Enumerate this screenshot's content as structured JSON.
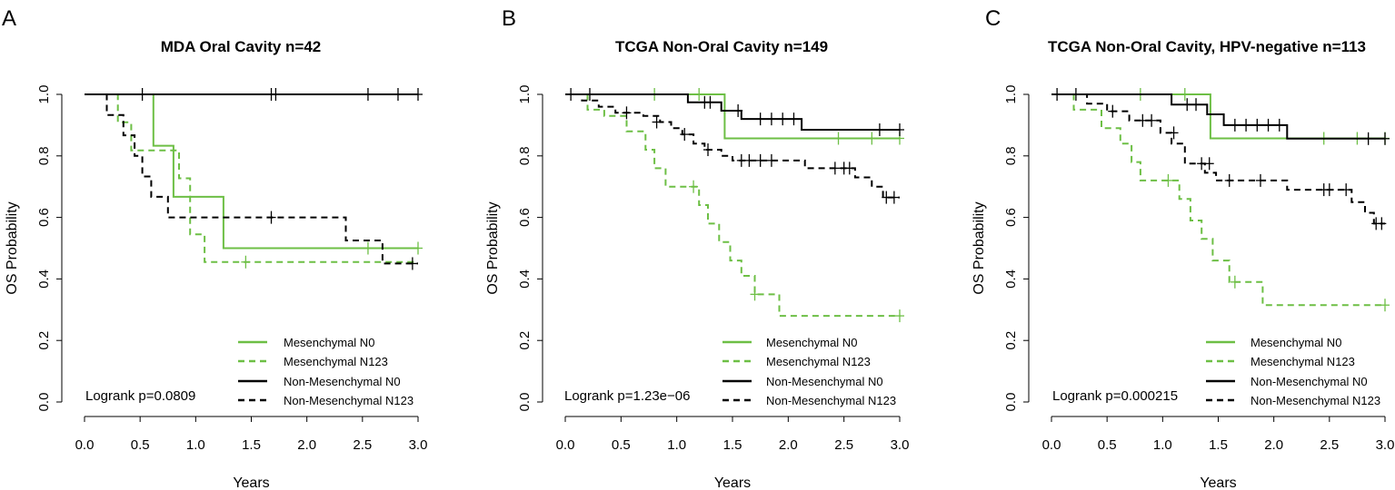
{
  "colors": {
    "green": "#6dbf45",
    "black": "#000000"
  },
  "chart_data": [
    {
      "type": "line",
      "subtype": "kaplan-meier",
      "panel": "A",
      "title": "MDA Oral Cavity n=42",
      "xlabel": "Years",
      "ylabel": "OS Probability",
      "xlim": [
        0,
        3
      ],
      "ylim": [
        0,
        1
      ],
      "xticks": [
        "0.0",
        "0.5",
        "1.0",
        "1.5",
        "2.0",
        "2.5",
        "3.0"
      ],
      "yticks": [
        "0.0",
        "0.2",
        "0.4",
        "0.6",
        "0.8",
        "1.0"
      ],
      "pvalue": "Logrank p=0.0809",
      "legend": [
        "Mesenchymal N0",
        "Mesenchymal N123",
        "Non-Mesenchymal N0",
        "Non-Mesenchymal N123"
      ],
      "series": [
        {
          "name": "Mesenchymal N0",
          "color": "#6dbf45",
          "dashed": false,
          "x": [
            0,
            0.62,
            0.62,
            0.8,
            0.8,
            1.25,
            1.25,
            3.0
          ],
          "y": [
            1,
            1,
            0.833,
            0.833,
            0.667,
            0.667,
            0.5,
            0.5
          ],
          "censor_x": [
            2.55,
            3.0
          ],
          "censor_y": [
            0.5,
            0.5
          ]
        },
        {
          "name": "Mesenchymal N123",
          "color": "#6dbf45",
          "dashed": true,
          "x": [
            0,
            0.3,
            0.3,
            0.42,
            0.42,
            0.85,
            0.85,
            0.95,
            0.95,
            1.08,
            1.08,
            3.0
          ],
          "y": [
            1,
            1,
            0.909,
            0.909,
            0.818,
            0.818,
            0.727,
            0.727,
            0.545,
            0.545,
            0.455,
            0.455
          ],
          "censor_x": [
            1.45
          ],
          "censor_y": [
            0.455
          ]
        },
        {
          "name": "Non-Mesenchymal N0",
          "color": "#000000",
          "dashed": false,
          "x": [
            0,
            3.0
          ],
          "y": [
            1,
            1
          ],
          "censor_x": [
            0.52,
            1.68,
            1.72,
            2.55,
            2.82,
            3.0
          ],
          "censor_y": [
            1,
            1,
            1,
            1,
            1,
            1
          ]
        },
        {
          "name": "Non-Mesenchymal N123",
          "color": "#000000",
          "dashed": true,
          "x": [
            0,
            0.2,
            0.2,
            0.35,
            0.35,
            0.45,
            0.45,
            0.52,
            0.52,
            0.6,
            0.6,
            0.75,
            0.75,
            2.35,
            2.35,
            2.68,
            2.68,
            3.0
          ],
          "y": [
            1,
            1,
            0.933,
            0.933,
            0.867,
            0.867,
            0.8,
            0.8,
            0.733,
            0.733,
            0.667,
            0.667,
            0.6,
            0.6,
            0.525,
            0.525,
            0.45,
            0.45
          ],
          "censor_x": [
            1.68,
            2.95
          ],
          "censor_y": [
            0.6,
            0.45
          ]
        }
      ]
    },
    {
      "type": "line",
      "subtype": "kaplan-meier",
      "panel": "B",
      "title": "TCGA Non-Oral Cavity n=149",
      "xlabel": "Years",
      "ylabel": "OS Probability",
      "xlim": [
        0,
        3
      ],
      "ylim": [
        0,
        1
      ],
      "xticks": [
        "0.0",
        "0.5",
        "1.0",
        "1.5",
        "2.0",
        "2.5",
        "3.0"
      ],
      "yticks": [
        "0.0",
        "0.2",
        "0.4",
        "0.6",
        "0.8",
        "1.0"
      ],
      "pvalue": "Logrank p=1.23e−06",
      "legend": [
        "Mesenchymal N0",
        "Mesenchymal N123",
        "Non-Mesenchymal N0",
        "Non-Mesenchymal N123"
      ],
      "series": [
        {
          "name": "Mesenchymal N0",
          "color": "#6dbf45",
          "dashed": false,
          "x": [
            0,
            1.43,
            1.43,
            3.0
          ],
          "y": [
            1,
            1,
            0.857,
            0.857
          ],
          "censor_x": [
            0.8,
            1.2,
            2.45,
            2.75,
            3.0
          ],
          "censor_y": [
            1,
            1,
            0.857,
            0.857,
            0.857
          ]
        },
        {
          "name": "Mesenchymal N123",
          "color": "#6dbf45",
          "dashed": true,
          "x": [
            0,
            0.2,
            0.2,
            0.35,
            0.35,
            0.55,
            0.55,
            0.72,
            0.72,
            0.8,
            0.8,
            0.9,
            0.9,
            0.98,
            0.98,
            1.2,
            1.2,
            1.28,
            1.28,
            1.38,
            1.38,
            1.48,
            1.48,
            1.58,
            1.58,
            1.7,
            1.7,
            1.92,
            1.92,
            3.0
          ],
          "y": [
            1,
            1,
            0.95,
            0.95,
            0.93,
            0.93,
            0.88,
            0.88,
            0.82,
            0.82,
            0.76,
            0.76,
            0.7,
            0.7,
            0.7,
            0.7,
            0.64,
            0.64,
            0.58,
            0.58,
            0.52,
            0.52,
            0.46,
            0.46,
            0.41,
            0.41,
            0.35,
            0.35,
            0.28,
            0.28
          ],
          "censor_x": [
            1.15,
            1.7,
            3.0
          ],
          "censor_y": [
            0.7,
            0.35,
            0.28
          ]
        },
        {
          "name": "Non-Mesenchymal N0",
          "color": "#000000",
          "dashed": false,
          "x": [
            0,
            1.1,
            1.1,
            1.4,
            1.4,
            1.58,
            1.58,
            2.12,
            2.12,
            3.0
          ],
          "y": [
            1,
            1,
            0.974,
            0.974,
            0.947,
            0.947,
            0.92,
            0.92,
            0.885,
            0.885
          ],
          "censor_x": [
            0.22,
            1.25,
            1.3,
            1.55,
            1.75,
            1.85,
            1.95,
            2.05,
            2.82,
            3.0
          ],
          "censor_y": [
            1,
            0.974,
            0.974,
            0.947,
            0.92,
            0.92,
            0.92,
            0.92,
            0.885,
            0.885
          ]
        },
        {
          "name": "Non-Mesenchymal N123",
          "color": "#000000",
          "dashed": true,
          "x": [
            0,
            0.15,
            0.15,
            0.3,
            0.3,
            0.45,
            0.45,
            0.7,
            0.7,
            0.85,
            0.85,
            0.95,
            0.95,
            1.05,
            1.05,
            1.15,
            1.15,
            1.25,
            1.25,
            1.4,
            1.4,
            1.5,
            1.5,
            2.15,
            2.15,
            2.6,
            2.6,
            2.75,
            2.75,
            2.85,
            2.85,
            3.0
          ],
          "y": [
            1,
            1,
            0.98,
            0.98,
            0.96,
            0.96,
            0.94,
            0.94,
            0.93,
            0.93,
            0.91,
            0.91,
            0.89,
            0.89,
            0.87,
            0.87,
            0.84,
            0.84,
            0.82,
            0.82,
            0.8,
            0.8,
            0.785,
            0.785,
            0.76,
            0.76,
            0.73,
            0.73,
            0.7,
            0.7,
            0.665,
            0.665
          ],
          "censor_x": [
            0.05,
            0.55,
            0.82,
            1.07,
            1.28,
            1.58,
            1.65,
            1.75,
            1.85,
            2.42,
            2.5,
            2.55,
            2.88,
            2.95
          ],
          "censor_y": [
            1,
            0.94,
            0.91,
            0.87,
            0.82,
            0.785,
            0.785,
            0.785,
            0.785,
            0.76,
            0.76,
            0.76,
            0.665,
            0.665
          ]
        }
      ]
    },
    {
      "type": "line",
      "subtype": "kaplan-meier",
      "panel": "C",
      "title": "TCGA Non-Oral Cavity, HPV-negative n=113",
      "xlabel": "Years",
      "ylabel": "OS Probability",
      "xlim": [
        0,
        3
      ],
      "ylim": [
        0,
        1
      ],
      "xticks": [
        "0.0",
        "0.5",
        "1.0",
        "1.5",
        "2.0",
        "2.5",
        "3.0"
      ],
      "yticks": [
        "0.0",
        "0.2",
        "0.4",
        "0.6",
        "0.8",
        "1.0"
      ],
      "pvalue": "Logrank p=0.000215",
      "legend": [
        "Mesenchymal N0",
        "Mesenchymal N123",
        "Non-Mesenchymal N0",
        "Non-Mesenchymal N123"
      ],
      "series": [
        {
          "name": "Mesenchymal N0",
          "color": "#6dbf45",
          "dashed": false,
          "x": [
            0,
            1.43,
            1.43,
            3.0
          ],
          "y": [
            1,
            1,
            0.857,
            0.857
          ],
          "censor_x": [
            0.8,
            1.2,
            2.45,
            2.75,
            3.0
          ],
          "censor_y": [
            1,
            1,
            0.857,
            0.857,
            0.857
          ]
        },
        {
          "name": "Mesenchymal N123",
          "color": "#6dbf45",
          "dashed": true,
          "x": [
            0,
            0.2,
            0.2,
            0.45,
            0.45,
            0.62,
            0.62,
            0.72,
            0.72,
            0.8,
            0.8,
            0.88,
            0.88,
            1.15,
            1.15,
            1.25,
            1.25,
            1.35,
            1.35,
            1.45,
            1.45,
            1.6,
            1.6,
            1.9,
            1.9,
            3.0
          ],
          "y": [
            1,
            1,
            0.95,
            0.95,
            0.89,
            0.89,
            0.84,
            0.84,
            0.78,
            0.78,
            0.72,
            0.72,
            0.72,
            0.72,
            0.66,
            0.66,
            0.59,
            0.59,
            0.53,
            0.53,
            0.46,
            0.46,
            0.39,
            0.39,
            0.315,
            0.315
          ],
          "censor_x": [
            1.05,
            1.65,
            3.0
          ],
          "censor_y": [
            0.72,
            0.39,
            0.315
          ]
        },
        {
          "name": "Non-Mesenchymal N0",
          "color": "#000000",
          "dashed": false,
          "x": [
            0,
            1.08,
            1.08,
            1.4,
            1.4,
            1.55,
            1.55,
            2.12,
            2.12,
            3.0
          ],
          "y": [
            1,
            1,
            0.967,
            0.967,
            0.935,
            0.935,
            0.9,
            0.9,
            0.856,
            0.856
          ],
          "censor_x": [
            0.22,
            1.22,
            1.3,
            1.65,
            1.75,
            1.85,
            1.95,
            2.05,
            2.85,
            3.0
          ],
          "censor_y": [
            1,
            0.967,
            0.967,
            0.9,
            0.9,
            0.9,
            0.9,
            0.9,
            0.856,
            0.856
          ]
        },
        {
          "name": "Non-Mesenchymal N123",
          "color": "#000000",
          "dashed": true,
          "x": [
            0,
            0.32,
            0.32,
            0.5,
            0.5,
            0.7,
            0.7,
            0.98,
            0.98,
            1.08,
            1.08,
            1.2,
            1.2,
            1.38,
            1.38,
            1.48,
            1.48,
            2.12,
            2.12,
            2.7,
            2.7,
            2.82,
            2.82,
            2.9,
            2.9,
            3.0
          ],
          "y": [
            1,
            1,
            0.97,
            0.97,
            0.945,
            0.945,
            0.915,
            0.915,
            0.875,
            0.875,
            0.84,
            0.84,
            0.775,
            0.775,
            0.745,
            0.745,
            0.72,
            0.72,
            0.69,
            0.69,
            0.65,
            0.65,
            0.615,
            0.615,
            0.58,
            0.58
          ],
          "censor_x": [
            0.05,
            0.55,
            0.82,
            0.9,
            1.1,
            1.35,
            1.42,
            1.6,
            1.88,
            2.45,
            2.5,
            2.65,
            2.92,
            2.97
          ],
          "censor_y": [
            1,
            0.945,
            0.915,
            0.915,
            0.875,
            0.775,
            0.775,
            0.72,
            0.72,
            0.69,
            0.69,
            0.69,
            0.58,
            0.58
          ]
        }
      ]
    }
  ]
}
